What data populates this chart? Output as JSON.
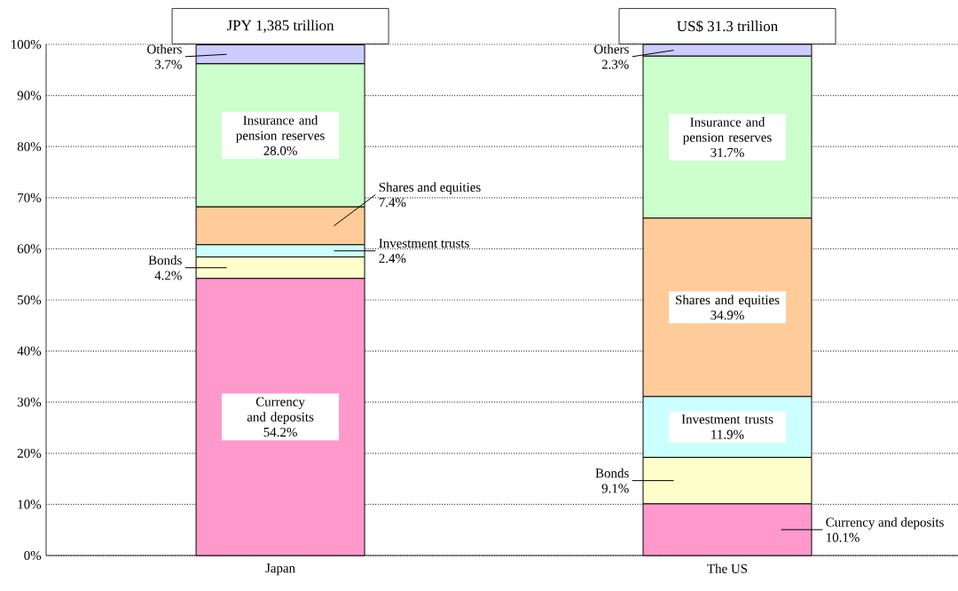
{
  "chart_data": {
    "type": "bar",
    "stacked": true,
    "categories": [
      "Japan",
      "The US"
    ],
    "series": [
      {
        "name": "Currency and deposits",
        "color": "#ff99cc",
        "values": [
          54.2,
          10.1
        ],
        "value_labels": [
          "54.2%",
          "10.1%"
        ]
      },
      {
        "name": "Bonds",
        "color": "#ffffcc",
        "values": [
          4.2,
          9.1
        ],
        "value_labels": [
          "4.2%",
          "9.1%"
        ]
      },
      {
        "name": "Investment trusts",
        "color": "#ccffff",
        "values": [
          2.4,
          11.9
        ],
        "value_labels": [
          "2.4%",
          "11.9%"
        ]
      },
      {
        "name": "Shares and equities",
        "color": "#ffcc99",
        "values": [
          7.4,
          34.9
        ],
        "value_labels": [
          "7.4%",
          "34.9%"
        ]
      },
      {
        "name": "Insurance and pension reserves",
        "color": "#ccffcc",
        "values": [
          28.0,
          31.7
        ],
        "value_labels": [
          "28.0%",
          "31.7%"
        ]
      },
      {
        "name": "Others",
        "color": "#ccccff",
        "values": [
          3.7,
          2.3
        ],
        "value_labels": [
          "3.7%",
          "2.3%"
        ]
      }
    ],
    "ylim": [
      0,
      100
    ],
    "yticks": [
      {
        "value": 0,
        "label": "0%"
      },
      {
        "value": 10,
        "label": "10%"
      },
      {
        "value": 20,
        "label": "20%"
      },
      {
        "value": 30,
        "label": "30%"
      },
      {
        "value": 40,
        "label": "40%"
      },
      {
        "value": 50,
        "label": "50%"
      },
      {
        "value": 60,
        "label": "60%"
      },
      {
        "value": 70,
        "label": "70%"
      },
      {
        "value": 80,
        "label": "80%"
      },
      {
        "value": 90,
        "label": "90%"
      },
      {
        "value": 100,
        "label": "100%"
      }
    ],
    "grid": "y",
    "annotations": [
      "JPY 1,385 trillion",
      "US$ 31.3 trillion"
    ]
  }
}
